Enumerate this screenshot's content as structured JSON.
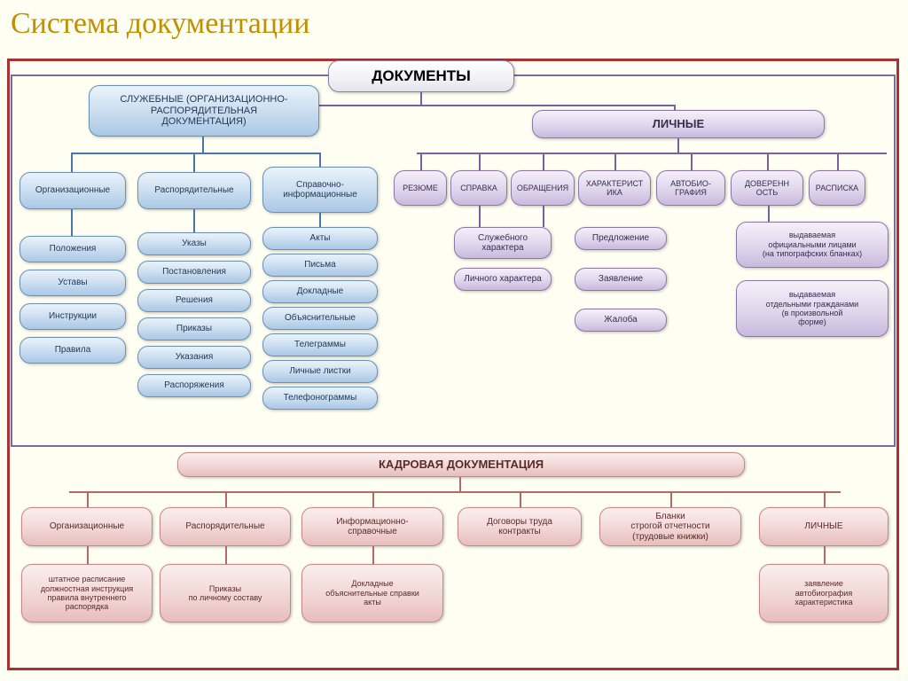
{
  "page": {
    "title": "Система документации",
    "title_color": "#c09000",
    "bg": "#fefef2",
    "outer_border": "#a83232",
    "upper_border": "#7a6aa0"
  },
  "conn_colors": {
    "blue": "#4a77aa",
    "purple": "#7a60a0",
    "pink": "#b56868"
  },
  "root": {
    "label": "ДОКУМЕНТЫ"
  },
  "official": {
    "header": "СЛУЖЕБНЫЕ (ОРГАНИЗАЦИОННО-\nРАСПОРЯДИТЕЛЬНАЯ\nДОКУМЕНТАЦИЯ)",
    "cols": [
      {
        "head": "Организационные",
        "items": [
          "Положения",
          "Уставы",
          "Инструкции",
          "Правила"
        ]
      },
      {
        "head": "Распорядительные",
        "items": [
          "Указы",
          "Постановления",
          "Решения",
          "Приказы",
          "Указания",
          "Распоряжения"
        ]
      },
      {
        "head": "Справочно-\nинформационные",
        "items": [
          "Акты",
          "Письма",
          "Докладные",
          "Объяснительные",
          "Телеграммы",
          "Личные листки",
          "Телефонограммы"
        ]
      }
    ]
  },
  "personal": {
    "header": "ЛИЧНЫЕ",
    "types": [
      "РЕЗЮМЕ",
      "СПРАВКА",
      "ОБРАЩЕНИЯ",
      "ХАРАКТЕРИСТ\nИКА",
      "АВТОБИО-\nГРАФИЯ",
      "ДОВЕРЕНН\nОСТЬ",
      "РАСПИСКА"
    ],
    "spravka_sub": [
      "Служебного\nхарактера",
      "Личного характера"
    ],
    "obr_sub": [
      "Предложение",
      "Заявление",
      "Жалоба"
    ],
    "dover_sub": [
      "выдаваемая\nофициальными лицами\n(на типографских бланках)",
      "выдаваемая\nотдельными гражданами\n(в произвольной\nформе)"
    ]
  },
  "hr": {
    "header": "КАДРОВАЯ ДОКУМЕНТАЦИЯ",
    "cols": [
      {
        "head": "Организационные",
        "sub": "штатное расписание\nдолжностная инструкция\nправила внутреннего\nраспорядка"
      },
      {
        "head": "Распорядительные",
        "sub": "Приказы\nпо личному составу"
      },
      {
        "head": "Информационно-\nсправочные",
        "sub": "Докладные\nобъяснительные справки\nакты"
      },
      {
        "head": "Договоры труда\nконтракты",
        "sub": null
      },
      {
        "head": "Бланки\nстрогой отчетности\n(трудовые книжки)",
        "sub": null
      },
      {
        "head": "ЛИЧНЫЕ",
        "sub": "заявление\nавтобиография\nхарактеристика"
      }
    ]
  }
}
